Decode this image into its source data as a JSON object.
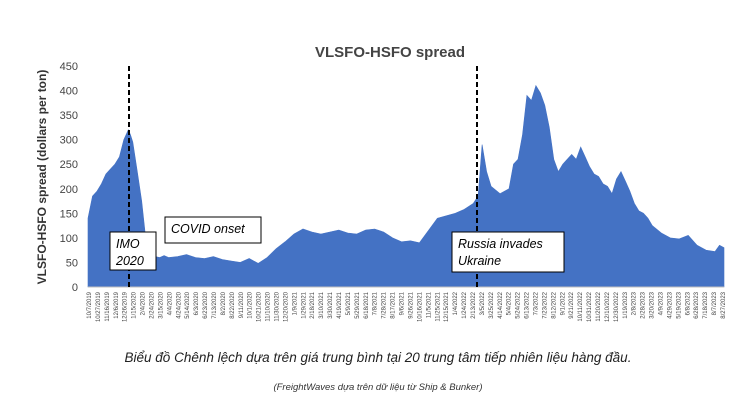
{
  "chart_data": {
    "type": "area",
    "title": "VLSFO-HSFO spread",
    "ylabel": "VLSFO-HSFO spread (dollars per ton)",
    "xlabel": "",
    "ylim": [
      0,
      450
    ],
    "yticks": [
      0,
      50,
      100,
      150,
      200,
      250,
      300,
      350,
      400,
      450
    ],
    "grid": false,
    "color": "#4472C4",
    "x_tick_labels": [
      "10/7/2019",
      "10/27/2019",
      "11/16/2019",
      "12/6/2019",
      "12/26/2019",
      "1/15/2020",
      "2/4/2020",
      "2/24/2020",
      "3/15/2020",
      "4/4/2020",
      "4/24/2020",
      "5/14/2020",
      "6/3/2020",
      "6/23/2020",
      "7/13/2020",
      "8/2/2020",
      "8/22/2020",
      "9/11/2020",
      "10/1/2020",
      "10/21/2020",
      "11/10/2020",
      "11/30/2020",
      "12/20/2020",
      "1/9/2021",
      "1/29/2021",
      "2/18/2021",
      "3/10/2021",
      "3/30/2021",
      "4/19/2021",
      "5/9/2021",
      "5/29/2021",
      "6/18/2021",
      "7/8/2021",
      "7/28/2021",
      "8/17/2021",
      "9/6/2021",
      "9/26/2021",
      "10/16/2021",
      "11/5/2021",
      "11/25/2021",
      "12/15/2021",
      "1/4/2022",
      "1/24/2022",
      "2/13/2022",
      "3/5/2022",
      "3/25/2022",
      "4/14/2022",
      "5/4/2022",
      "5/24/2022",
      "6/13/2022",
      "7/3/2022",
      "7/23/2022",
      "8/12/2022",
      "9/1/2022",
      "9/21/2022",
      "10/11/2022",
      "10/31/2022",
      "11/20/2022",
      "12/10/2022",
      "12/30/2022",
      "1/19/2023",
      "2/8/2023",
      "2/28/2023",
      "3/20/2023",
      "4/9/2023",
      "4/29/2023",
      "5/19/2023",
      "6/8/2023",
      "6/28/2023",
      "7/18/2023",
      "8/7/2023",
      "8/27/2023"
    ],
    "series": [
      {
        "x": [
          "2019-10-07",
          "2019-10-17",
          "2019-10-27",
          "2019-11-06",
          "2019-11-16",
          "2019-11-26",
          "2019-12-06",
          "2019-12-16",
          "2019-12-26",
          "2020-01-05",
          "2020-01-10",
          "2020-01-15",
          "2020-01-25",
          "2020-02-04",
          "2020-02-14",
          "2020-02-24",
          "2020-03-05",
          "2020-03-15",
          "2020-03-25",
          "2020-04-04",
          "2020-04-24",
          "2020-05-14",
          "2020-06-03",
          "2020-06-23",
          "2020-07-13",
          "2020-08-02",
          "2020-08-22",
          "2020-09-11",
          "2020-10-01",
          "2020-10-21",
          "2020-11-10",
          "2020-11-30",
          "2020-12-20",
          "2021-01-09",
          "2021-01-29",
          "2021-02-18",
          "2021-03-10",
          "2021-03-30",
          "2021-04-19",
          "2021-05-09",
          "2021-05-29",
          "2021-06-18",
          "2021-07-08",
          "2021-07-28",
          "2021-08-17",
          "2021-09-06",
          "2021-09-26",
          "2021-10-16",
          "2021-11-05",
          "2021-11-25",
          "2021-12-15",
          "2022-01-04",
          "2022-01-24",
          "2022-02-13",
          "2022-02-24",
          "2022-03-05",
          "2022-03-15",
          "2022-03-25",
          "2022-04-14",
          "2022-05-04",
          "2022-05-14",
          "2022-05-24",
          "2022-06-03",
          "2022-06-13",
          "2022-06-23",
          "2022-07-03",
          "2022-07-13",
          "2022-07-23",
          "2022-08-02",
          "2022-08-12",
          "2022-08-22",
          "2022-09-01",
          "2022-09-11",
          "2022-09-21",
          "2022-10-01",
          "2022-10-11",
          "2022-10-21",
          "2022-10-31",
          "2022-11-10",
          "2022-11-20",
          "2022-11-30",
          "2022-12-10",
          "2022-12-20",
          "2022-12-30",
          "2023-01-09",
          "2023-01-19",
          "2023-01-29",
          "2023-02-08",
          "2023-02-18",
          "2023-02-28",
          "2023-03-10",
          "2023-03-20",
          "2023-04-09",
          "2023-04-29",
          "2023-05-19",
          "2023-06-08",
          "2023-06-28",
          "2023-07-18",
          "2023-08-07",
          "2023-08-17",
          "2023-08-27"
        ],
        "values": [
          140,
          185,
          195,
          210,
          230,
          240,
          250,
          265,
          300,
          320,
          310,
          295,
          235,
          175,
          90,
          65,
          62,
          60,
          64,
          60,
          62,
          66,
          60,
          58,
          62,
          56,
          53,
          50,
          58,
          48,
          60,
          78,
          92,
          108,
          118,
          112,
          108,
          112,
          116,
          110,
          108,
          116,
          118,
          112,
          100,
          92,
          94,
          90,
          115,
          140,
          145,
          150,
          158,
          170,
          185,
          290,
          235,
          205,
          190,
          200,
          250,
          260,
          310,
          390,
          380,
          410,
          395,
          370,
          325,
          260,
          235,
          250,
          260,
          270,
          260,
          285,
          265,
          245,
          230,
          225,
          210,
          205,
          190,
          220,
          235,
          215,
          195,
          170,
          155,
          150,
          140,
          125,
          110,
          100,
          98,
          105,
          85,
          75,
          72,
          85,
          80
        ]
      }
    ],
    "annotations": [
      {
        "date": "2020-01-10",
        "lines": [
          "IMO",
          "2020"
        ]
      },
      {
        "date": "2022-02-24",
        "lines": [
          "Russia invades",
          "Ukraine"
        ]
      },
      {
        "date": "2020-03-20",
        "lines": [
          "COVID onset"
        ]
      }
    ]
  },
  "caption": "Biểu đồ Chênh lệch dựa trên giá trung bình tại 20 trung tâm tiếp nhiên liệu hàng đầu.",
  "source": "(FreightWaves dựa trên dữ liệu từ Ship & Bunker)"
}
